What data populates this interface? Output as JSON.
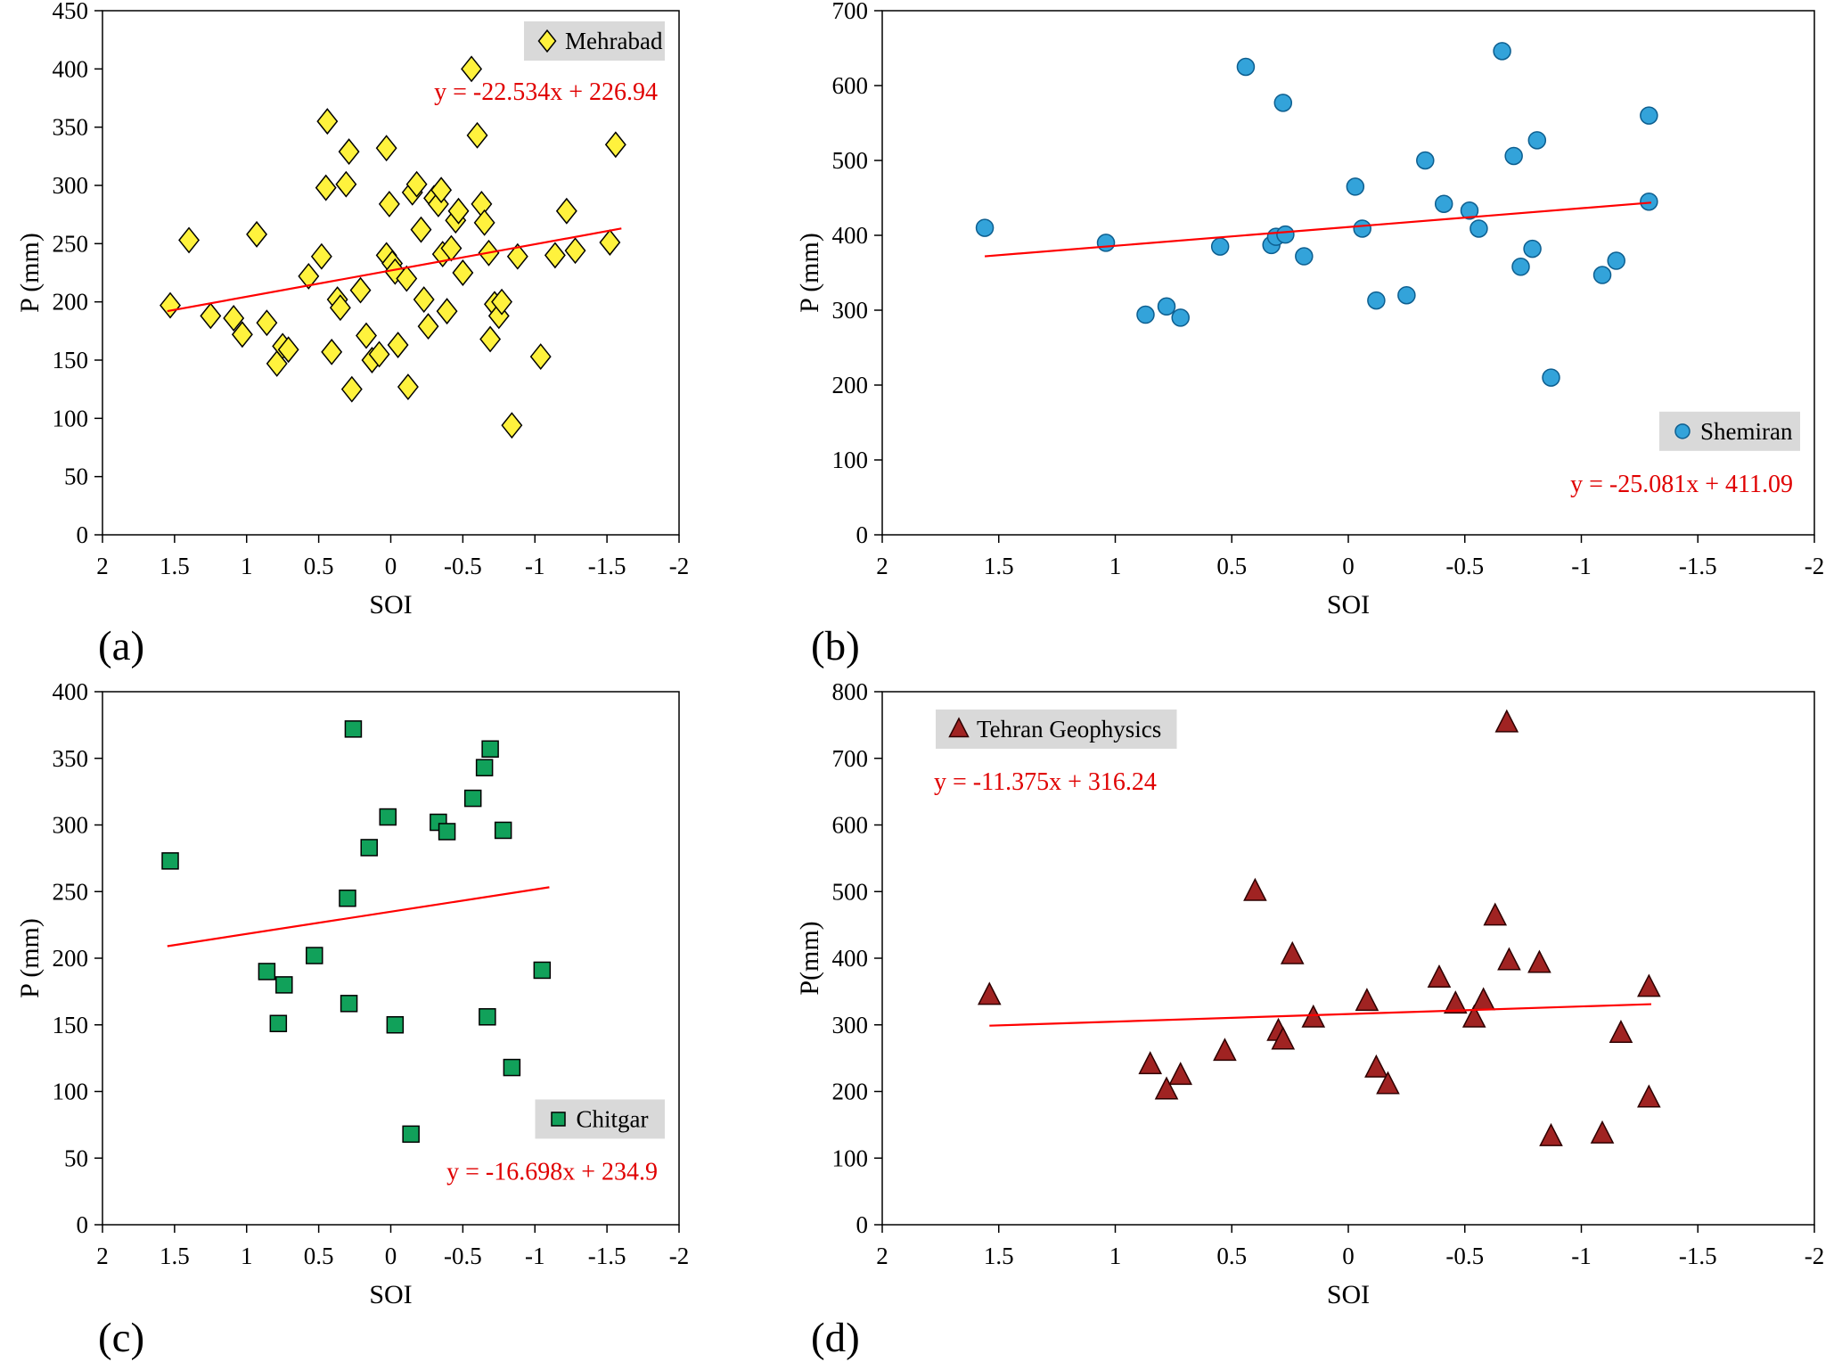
{
  "figure": {
    "background": "#ffffff",
    "trendline_color": "#ff0000",
    "equation_color": "#e00000",
    "legend_bg": "#d9d9d9",
    "plot_border": "#000000"
  },
  "chart_data": [
    {
      "type": "scatter",
      "panel_label": "(a)",
      "series": "Mehrabad",
      "marker": "diamond",
      "marker_fill": "#fff23d",
      "marker_stroke": "#000000",
      "xlabel": "SOI",
      "ylabel": "P (mm)",
      "xlim": [
        2,
        -2
      ],
      "ylim": [
        0,
        450
      ],
      "xticks": [
        2,
        1.5,
        1,
        0.5,
        0,
        -0.5,
        -1,
        -1.5,
        -2
      ],
      "yticks": [
        0,
        50,
        100,
        150,
        200,
        250,
        300,
        350,
        400,
        450
      ],
      "legend_position": "top-right",
      "equation": "y = -22.534x + 226.94",
      "trendline": {
        "slope": -22.534,
        "intercept": 226.94,
        "x_start": 1.55,
        "x_end": -1.6
      },
      "points": [
        [
          1.53,
          197
        ],
        [
          1.4,
          253
        ],
        [
          1.25,
          188
        ],
        [
          1.09,
          186
        ],
        [
          1.03,
          172
        ],
        [
          0.93,
          258
        ],
        [
          0.86,
          182
        ],
        [
          0.79,
          147
        ],
        [
          0.75,
          162
        ],
        [
          0.71,
          159
        ],
        [
          0.57,
          222
        ],
        [
          0.48,
          239
        ],
        [
          0.45,
          298
        ],
        [
          0.44,
          355
        ],
        [
          0.41,
          157
        ],
        [
          0.37,
          202
        ],
        [
          0.35,
          195
        ],
        [
          0.31,
          301
        ],
        [
          0.29,
          329
        ],
        [
          0.27,
          125
        ],
        [
          0.21,
          210
        ],
        [
          0.17,
          171
        ],
        [
          0.13,
          150
        ],
        [
          0.08,
          155
        ],
        [
          0.03,
          332
        ],
        [
          0.03,
          240
        ],
        [
          0.01,
          284
        ],
        [
          -0.01,
          233
        ],
        [
          -0.03,
          226
        ],
        [
          -0.05,
          163
        ],
        [
          -0.11,
          220
        ],
        [
          -0.12,
          127
        ],
        [
          -0.15,
          294
        ],
        [
          -0.18,
          301
        ],
        [
          -0.21,
          262
        ],
        [
          -0.23,
          202
        ],
        [
          -0.26,
          179
        ],
        [
          -0.3,
          289
        ],
        [
          -0.33,
          284
        ],
        [
          -0.35,
          296
        ],
        [
          -0.36,
          241
        ],
        [
          -0.39,
          192
        ],
        [
          -0.42,
          246
        ],
        [
          -0.45,
          270
        ],
        [
          -0.47,
          278
        ],
        [
          -0.5,
          225
        ],
        [
          -0.56,
          400
        ],
        [
          -0.6,
          343
        ],
        [
          -0.63,
          284
        ],
        [
          -0.65,
          268
        ],
        [
          -0.68,
          242
        ],
        [
          -0.69,
          168
        ],
        [
          -0.72,
          198
        ],
        [
          -0.75,
          188
        ],
        [
          -0.77,
          200
        ],
        [
          -0.84,
          94
        ],
        [
          -0.88,
          239
        ],
        [
          -1.04,
          153
        ],
        [
          -1.14,
          240
        ],
        [
          -1.22,
          278
        ],
        [
          -1.28,
          244
        ],
        [
          -1.52,
          251
        ],
        [
          -1.56,
          335
        ]
      ]
    },
    {
      "type": "scatter",
      "panel_label": "(b)",
      "series": "Shemiran",
      "marker": "circle",
      "marker_fill": "#33a3da",
      "marker_stroke": "#0d5e8f",
      "xlabel": "SOI",
      "ylabel": "P (mm)",
      "xlim": [
        2,
        -2
      ],
      "ylim": [
        0,
        700
      ],
      "xticks": [
        2,
        1.5,
        1,
        0.5,
        0,
        -0.5,
        -1,
        -1.5,
        -2
      ],
      "yticks": [
        0,
        100,
        200,
        300,
        400,
        500,
        600,
        700
      ],
      "legend_position": "bottom-right",
      "equation": "y = -25.081x + 411.09",
      "trendline": {
        "slope": -25.081,
        "intercept": 411.09,
        "x_start": 1.56,
        "x_end": -1.3
      },
      "points": [
        [
          1.56,
          410
        ],
        [
          1.04,
          390
        ],
        [
          0.87,
          294
        ],
        [
          0.78,
          305
        ],
        [
          0.72,
          290
        ],
        [
          0.55,
          385
        ],
        [
          0.44,
          625
        ],
        [
          0.33,
          387
        ],
        [
          0.31,
          398
        ],
        [
          0.28,
          577
        ],
        [
          0.27,
          401
        ],
        [
          0.19,
          372
        ],
        [
          -0.03,
          465
        ],
        [
          -0.06,
          409
        ],
        [
          -0.12,
          313
        ],
        [
          -0.25,
          320
        ],
        [
          -0.33,
          500
        ],
        [
          -0.41,
          442
        ],
        [
          -0.52,
          433
        ],
        [
          -0.56,
          409
        ],
        [
          -0.66,
          646
        ],
        [
          -0.71,
          506
        ],
        [
          -0.74,
          358
        ],
        [
          -0.79,
          382
        ],
        [
          -0.81,
          527
        ],
        [
          -0.87,
          210
        ],
        [
          -1.09,
          347
        ],
        [
          -1.15,
          366
        ],
        [
          -1.29,
          560
        ],
        [
          -1.29,
          445
        ]
      ]
    },
    {
      "type": "scatter",
      "panel_label": "(c)",
      "series": "Chitgar",
      "marker": "square",
      "marker_fill": "#11a15a",
      "marker_stroke": "#000000",
      "xlabel": "SOI",
      "ylabel": "P (mm)",
      "xlim": [
        2,
        -2
      ],
      "ylim": [
        0,
        400
      ],
      "xticks": [
        2,
        1.5,
        1,
        0.5,
        0,
        -0.5,
        -1,
        -1.5,
        -2
      ],
      "yticks": [
        0,
        50,
        100,
        150,
        200,
        250,
        300,
        350,
        400
      ],
      "legend_position": "bottom-right",
      "equation": "y = -16.698x + 234.9",
      "trendline": {
        "slope": -16.698,
        "intercept": 234.9,
        "x_start": 1.55,
        "x_end": -1.1
      },
      "points": [
        [
          1.53,
          273
        ],
        [
          0.86,
          190
        ],
        [
          0.78,
          151
        ],
        [
          0.74,
          180
        ],
        [
          0.53,
          202
        ],
        [
          0.3,
          245
        ],
        [
          0.29,
          166
        ],
        [
          0.26,
          372
        ],
        [
          0.15,
          283
        ],
        [
          0.02,
          306
        ],
        [
          -0.03,
          150
        ],
        [
          -0.14,
          68
        ],
        [
          -0.33,
          302
        ],
        [
          -0.39,
          295
        ],
        [
          -0.57,
          320
        ],
        [
          -0.65,
          343
        ],
        [
          -0.69,
          357
        ],
        [
          -0.67,
          156
        ],
        [
          -0.78,
          296
        ],
        [
          -0.84,
          118
        ],
        [
          -1.05,
          191
        ]
      ]
    },
    {
      "type": "scatter",
      "panel_label": "(d)",
      "series": "Tehran Geophysics",
      "marker": "triangle",
      "marker_fill": "#a02322",
      "marker_stroke": "#2d0000",
      "xlabel": "SOI",
      "ylabel": "P(mm)",
      "xlim": [
        2,
        -2
      ],
      "ylim": [
        0,
        800
      ],
      "xticks": [
        2,
        1.5,
        1,
        0.5,
        0,
        -0.5,
        -1,
        -1.5,
        -2
      ],
      "yticks": [
        0,
        100,
        200,
        300,
        400,
        500,
        600,
        700,
        800
      ],
      "legend_position": "top-left",
      "equation": "y = -11.375x + 316.24",
      "trendline": {
        "slope": -11.375,
        "intercept": 316.24,
        "x_start": 1.54,
        "x_end": -1.3
      },
      "points": [
        [
          1.54,
          344
        ],
        [
          0.85,
          240
        ],
        [
          0.78,
          202
        ],
        [
          0.72,
          224
        ],
        [
          0.53,
          260
        ],
        [
          0.4,
          500
        ],
        [
          0.3,
          290
        ],
        [
          0.28,
          277
        ],
        [
          0.24,
          405
        ],
        [
          0.15,
          310
        ],
        [
          -0.08,
          335
        ],
        [
          -0.12,
          235
        ],
        [
          -0.17,
          210
        ],
        [
          -0.39,
          370
        ],
        [
          -0.46,
          331
        ],
        [
          -0.54,
          310
        ],
        [
          -0.58,
          336
        ],
        [
          -0.63,
          463
        ],
        [
          -0.68,
          753
        ],
        [
          -0.69,
          396
        ],
        [
          -0.82,
          392
        ],
        [
          -0.87,
          132
        ],
        [
          -1.09,
          136
        ],
        [
          -1.17,
          287
        ],
        [
          -1.29,
          356
        ],
        [
          -1.29,
          190
        ]
      ]
    }
  ]
}
